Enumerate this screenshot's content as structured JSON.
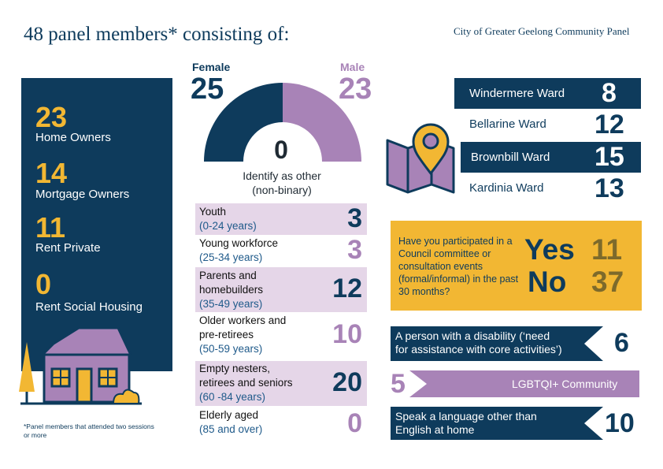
{
  "title": "48 panel members* consisting of:",
  "organisation": "City of Greater Geelong Community Panel",
  "footnote": "*Panel members that attended two sessions or more",
  "housing": [
    {
      "value": "23",
      "label": "Home Owners"
    },
    {
      "value": "14",
      "label": "Mortgage Owners"
    },
    {
      "value": "11",
      "label": "Rent Private"
    },
    {
      "value": "0",
      "label": "Rent Social Housing"
    }
  ],
  "gender": {
    "female_label": "Female",
    "female_value": "25",
    "male_label": "Male",
    "male_value": "23",
    "other_value": "0",
    "other_label_1": "Identify as other",
    "other_label_2": "(non-binary)",
    "colors": {
      "female": "#0e3b5c",
      "male": "#a883b7"
    }
  },
  "age_groups": [
    {
      "line1": "Youth",
      "line2": "",
      "years": "(0-24 years)",
      "value": "3"
    },
    {
      "line1": "Young workforce",
      "line2": "",
      "years": "(25-34 years)",
      "value": "3"
    },
    {
      "line1": "Parents and",
      "line2": "homebuilders",
      "years": "(35-49 years)",
      "value": "12"
    },
    {
      "line1": "Older workers and",
      "line2": "pre-retirees",
      "years": "(50-59 years)",
      "value": "10"
    },
    {
      "line1": "Empty nesters,",
      "line2": "retirees and seniors",
      "years": "(60 -84 years)",
      "value": "20"
    },
    {
      "line1": "Elderly aged",
      "line2": "",
      "years": "(85 and over)",
      "value": "0"
    }
  ],
  "wards": [
    {
      "name": "Windermere Ward",
      "value": "8"
    },
    {
      "name": "Bellarine Ward",
      "value": "12"
    },
    {
      "name": "Brownbill Ward",
      "value": "15"
    },
    {
      "name": "Kardinia Ward",
      "value": "13"
    }
  ],
  "participation": {
    "question": "Have you participated in a Council committee or consultation events (formal/informal) in the past 30 months?",
    "yes_label": "Yes",
    "yes_value": "11",
    "no_label": "No",
    "no_value": "37"
  },
  "disability": {
    "line1": "A person with a disability (‘need",
    "line2": "for assistance with core activities’)",
    "value": "6"
  },
  "lgbtqi": {
    "label": "LGBTQI+ Community",
    "value": "5"
  },
  "language": {
    "line1": "Speak a language other than",
    "line2": "English at home",
    "value": "10"
  },
  "colors": {
    "navy": "#0e3b5c",
    "purple": "#a883b7",
    "gold": "#f2b733",
    "lavender": "#e5d6e8"
  }
}
